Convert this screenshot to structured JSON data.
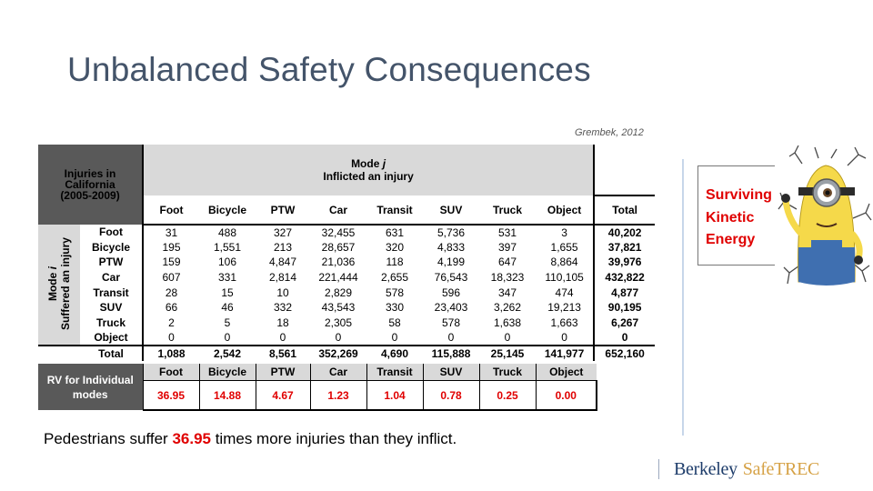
{
  "title": "Unbalanced Safety Consequences",
  "citation": "Grembek, 2012",
  "table": {
    "corner_lines": [
      "Injuries in",
      "California",
      "(2005-2009)"
    ],
    "mode_j_line1": "Mode ",
    "mode_j_italic": "j",
    "mode_j_line2": "Inflicted an injury",
    "row_axis_line1": "Mode ",
    "row_axis_italic": "i",
    "row_axis_line2": "Suffered an injury",
    "columns": [
      "Foot",
      "Bicycle",
      "PTW",
      "Car",
      "Transit",
      "SUV",
      "Truck",
      "Object"
    ],
    "total_label": "Total",
    "rows": [
      {
        "label": "Foot",
        "values": [
          "31",
          "488",
          "327",
          "32,455",
          "631",
          "5,736",
          "531",
          "3"
        ],
        "total": "40,202"
      },
      {
        "label": "Bicycle",
        "values": [
          "195",
          "1,551",
          "213",
          "28,657",
          "320",
          "4,833",
          "397",
          "1,655"
        ],
        "total": "37,821"
      },
      {
        "label": "PTW",
        "values": [
          "159",
          "106",
          "4,847",
          "21,036",
          "118",
          "4,199",
          "647",
          "8,864"
        ],
        "total": "39,976"
      },
      {
        "label": "Car",
        "values": [
          "607",
          "331",
          "2,814",
          "221,444",
          "2,655",
          "76,543",
          "18,323",
          "110,105"
        ],
        "total": "432,822"
      },
      {
        "label": "Transit",
        "values": [
          "28",
          "15",
          "10",
          "2,829",
          "578",
          "596",
          "347",
          "474"
        ],
        "total": "4,877"
      },
      {
        "label": "SUV",
        "values": [
          "66",
          "46",
          "332",
          "43,543",
          "330",
          "23,403",
          "3,262",
          "19,213"
        ],
        "total": "90,195"
      },
      {
        "label": "Truck",
        "values": [
          "2",
          "5",
          "18",
          "2,305",
          "58",
          "578",
          "1,638",
          "1,663"
        ],
        "total": "6,267"
      },
      {
        "label": "Object",
        "values": [
          "0",
          "0",
          "0",
          "0",
          "0",
          "0",
          "0",
          "0"
        ],
        "total": "0"
      }
    ],
    "totals_row": {
      "label": "Total",
      "values": [
        "1,088",
        "2,542",
        "8,561",
        "352,269",
        "4,690",
        "115,888",
        "25,145",
        "141,977"
      ],
      "total": "652,160"
    }
  },
  "rv": {
    "header_lines": [
      "RV for Individual",
      "modes"
    ],
    "columns": [
      "Foot",
      "Bicycle",
      "PTW",
      "Car",
      "Transit",
      "SUV",
      "Truck",
      "Object"
    ],
    "values": [
      "36.95",
      "14.88",
      "4.67",
      "1.23",
      "1.04",
      "0.78",
      "0.25",
      "0.00"
    ]
  },
  "statement": {
    "before": "Pedestrians suffer ",
    "highlight": "36.95",
    "after": " times more injuries than they inflict."
  },
  "callout_lines": [
    "Surviving",
    "Kinetic",
    "Energy"
  ],
  "logo": {
    "part1": "Berkeley",
    "part2": "SafeTREC"
  },
  "colors": {
    "accent_red": "#e00000",
    "title": "#44546a",
    "header_dark": "#595959",
    "header_light": "#d9d9d9"
  },
  "icons": [
    "minion-illustration",
    "cracked-wall-illustration"
  ]
}
